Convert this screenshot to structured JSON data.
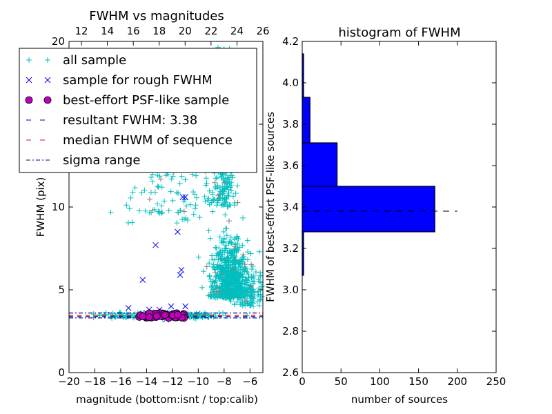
{
  "chart_data": [
    {
      "type": "scatter",
      "title": "FWHM vs magnitudes",
      "xlabel": "magnitude (bottom:isnt / top:calib)",
      "ylabel": "FWHM (pix)",
      "xlim": [
        -20,
        -5
      ],
      "ylim": [
        0,
        20
      ],
      "xticks": [
        "−20",
        "−18",
        "−16",
        "−14",
        "−12",
        "−10",
        "−8",
        "−6"
      ],
      "xtick_values": [
        -20,
        -18,
        -16,
        -14,
        -12,
        -10,
        -8,
        -6
      ],
      "yticks": [
        "0",
        "5",
        "10",
        "15",
        "20"
      ],
      "ytick_values": [
        0,
        5,
        10,
        15,
        20
      ],
      "top_xlim": [
        11.04,
        26
      ],
      "top_xticks": [
        "12",
        "14",
        "16",
        "18",
        "20",
        "22",
        "24",
        "26"
      ],
      "top_xtick_values": [
        12,
        14,
        16,
        18,
        20,
        22,
        24,
        26
      ],
      "legend": {
        "placement": "upper-left",
        "entries": [
          {
            "label": "all sample",
            "marker": "+",
            "color": "#00bfbf"
          },
          {
            "label": "sample for rough FWHM",
            "marker": "x",
            "color": "#0000ff"
          },
          {
            "label": "best-effort PSF-like sample",
            "marker": "o",
            "color": "#bf00bf"
          },
          {
            "label": "resultant FWHM: 3.38",
            "style": "dashed",
            "color": "#00008b"
          },
          {
            "label": "median FHWM of sequence",
            "style": "dashed",
            "color": "#ff0000"
          },
          {
            "label": "sigma range",
            "style": "dashdot",
            "color": "#00008b"
          }
        ]
      },
      "lines": {
        "resultant": 3.38,
        "median": 3.45,
        "sigma_low": 3.3,
        "sigma_high": 3.6
      },
      "series": {
        "all_sample_clusters": [
          {
            "xmean": -7.6,
            "xsd": 0.7,
            "ymean": 4.5,
            "ysd": 1.6,
            "n": 700
          },
          {
            "xmean": -8.0,
            "xsd": 0.4,
            "ymean": 10,
            "ysd": 4,
            "n": 250
          },
          {
            "xmean": -12.5,
            "xsd": 2.2,
            "ymean": 3.45,
            "ysd": 0.08,
            "n": 250
          },
          {
            "xmean": -12.0,
            "xsd": 2.0,
            "ymean": 9,
            "ysd": 4.5,
            "n": 150
          },
          {
            "xmean": -6.0,
            "xsd": 0.6,
            "ymean": 4,
            "ysd": 1,
            "n": 120
          }
        ],
        "rough_sample": [
          [
            -15.4,
            3.9
          ],
          [
            -14.3,
            5.6
          ],
          [
            -13.3,
            7.7
          ],
          [
            -11.6,
            8.5
          ],
          [
            -11.3,
            6.2
          ],
          [
            -11.4,
            5.9
          ],
          [
            -11.2,
            10.6
          ],
          [
            -11.0,
            10.6
          ],
          [
            -11.0,
            4.0
          ],
          [
            -12.1,
            4.0
          ],
          [
            -13.0,
            3.8
          ],
          [
            -13.8,
            3.8
          ],
          [
            -12.5,
            3.2
          ],
          [
            -14.0,
            3.6
          ],
          [
            -12.2,
            3.6
          ],
          [
            -11.5,
            3.5
          ]
        ],
        "psf_like": {
          "xmin": -14.8,
          "xmax": -11.0,
          "ymin": 3.3,
          "ymax": 3.6,
          "n": 45
        }
      }
    },
    {
      "type": "bar",
      "orientation": "horizontal",
      "title": "histogram of FWHM",
      "xlabel": "number of sources",
      "ylabel": "FWHM of best-effort PSF-like sources",
      "xlim": [
        0,
        250
      ],
      "ylim": [
        2.6,
        4.2
      ],
      "xticks": [
        "0",
        "50",
        "100",
        "150",
        "200",
        "250"
      ],
      "xtick_values": [
        0,
        50,
        100,
        150,
        200,
        250
      ],
      "yticks": [
        "2.6",
        "2.8",
        "3.0",
        "3.2",
        "3.4",
        "3.6",
        "3.8",
        "4.0",
        "4.2"
      ],
      "ytick_values": [
        2.6,
        2.8,
        3.0,
        3.2,
        3.4,
        3.6,
        3.8,
        4.0,
        4.2
      ],
      "bins": [
        {
          "from": 3.07,
          "to": 3.28,
          "count": 1
        },
        {
          "from": 3.28,
          "to": 3.5,
          "count": 171
        },
        {
          "from": 3.5,
          "to": 3.71,
          "count": 45
        },
        {
          "from": 3.71,
          "to": 3.93,
          "count": 10
        },
        {
          "from": 3.93,
          "to": 4.14,
          "count": 1
        }
      ],
      "bar_color": "#0000ff",
      "resultant_line": {
        "y": 3.38,
        "x_end": 200
      }
    }
  ]
}
